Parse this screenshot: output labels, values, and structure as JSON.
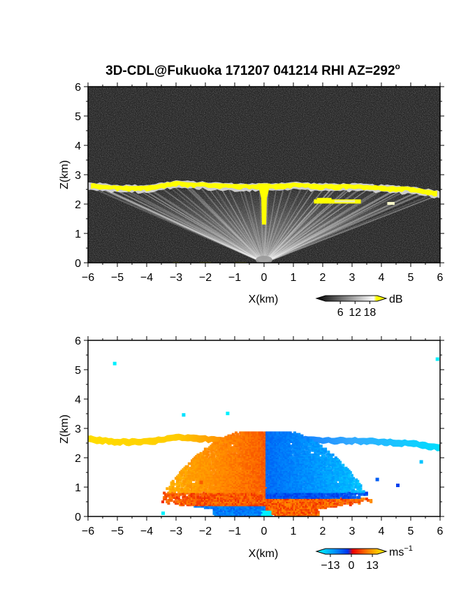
{
  "title": "3D-CDL@Fukuoka 171207 041214 RHI AZ=292",
  "title_superscript": "o",
  "chart_data": [
    {
      "type": "heatmap",
      "quantity": "intensity",
      "xlabel": "X(km)",
      "ylabel": "Z(km)",
      "xlim": [
        -6,
        6
      ],
      "ylim": [
        0,
        6
      ],
      "x_ticks": [
        -6,
        -5,
        -4,
        -3,
        -2,
        -1,
        0,
        1,
        2,
        3,
        4,
        5,
        6
      ],
      "y_ticks": [
        0,
        1,
        2,
        3,
        4,
        5,
        6
      ],
      "colorbar": {
        "unit": "dB",
        "ticks": [
          "6",
          "12",
          "18"
        ],
        "range": [
          0,
          21
        ],
        "colors": [
          "#000000",
          "#ffffff",
          "#ffff00"
        ]
      },
      "layer_top_km": [
        [
          -6,
          2.75
        ],
        [
          -5,
          2.65
        ],
        [
          -4,
          2.65
        ],
        [
          -3,
          2.8
        ],
        [
          -2,
          2.75
        ],
        [
          -1,
          2.7
        ],
        [
          0,
          2.7
        ],
        [
          1,
          2.75
        ],
        [
          2,
          2.7
        ],
        [
          3,
          2.7
        ],
        [
          4,
          2.65
        ],
        [
          5,
          2.6
        ],
        [
          6,
          2.45
        ]
      ],
      "fallstreak": {
        "x_km": 0.0,
        "from_km": 2.7,
        "to_km": 1.3
      },
      "background_color": "#262626"
    },
    {
      "type": "heatmap",
      "quantity": "doppler_velocity",
      "xlabel": "X(km)",
      "ylabel": "Z(km)",
      "xlim": [
        -6,
        6
      ],
      "ylim": [
        0,
        6
      ],
      "x_ticks": [
        -6,
        -5,
        -4,
        -3,
        -2,
        -1,
        0,
        1,
        2,
        3,
        4,
        5,
        6
      ],
      "y_ticks": [
        0,
        1,
        2,
        3,
        4,
        5,
        6
      ],
      "colorbar": {
        "unit": "ms",
        "unit_exp": "−1",
        "ticks": [
          "−13",
          "0",
          "13"
        ],
        "range": [
          -16,
          16
        ],
        "colors": [
          "#00ffff",
          "#0044ff",
          "#ff0000",
          "#ffff00"
        ]
      },
      "velocity_zones_ms": {
        "far_left_layer": 11,
        "near_left": 6,
        "near_right": -8,
        "far_right_layer": -13,
        "low_left": -10,
        "low_right": 6
      },
      "background_color": "#ffffff"
    }
  ]
}
